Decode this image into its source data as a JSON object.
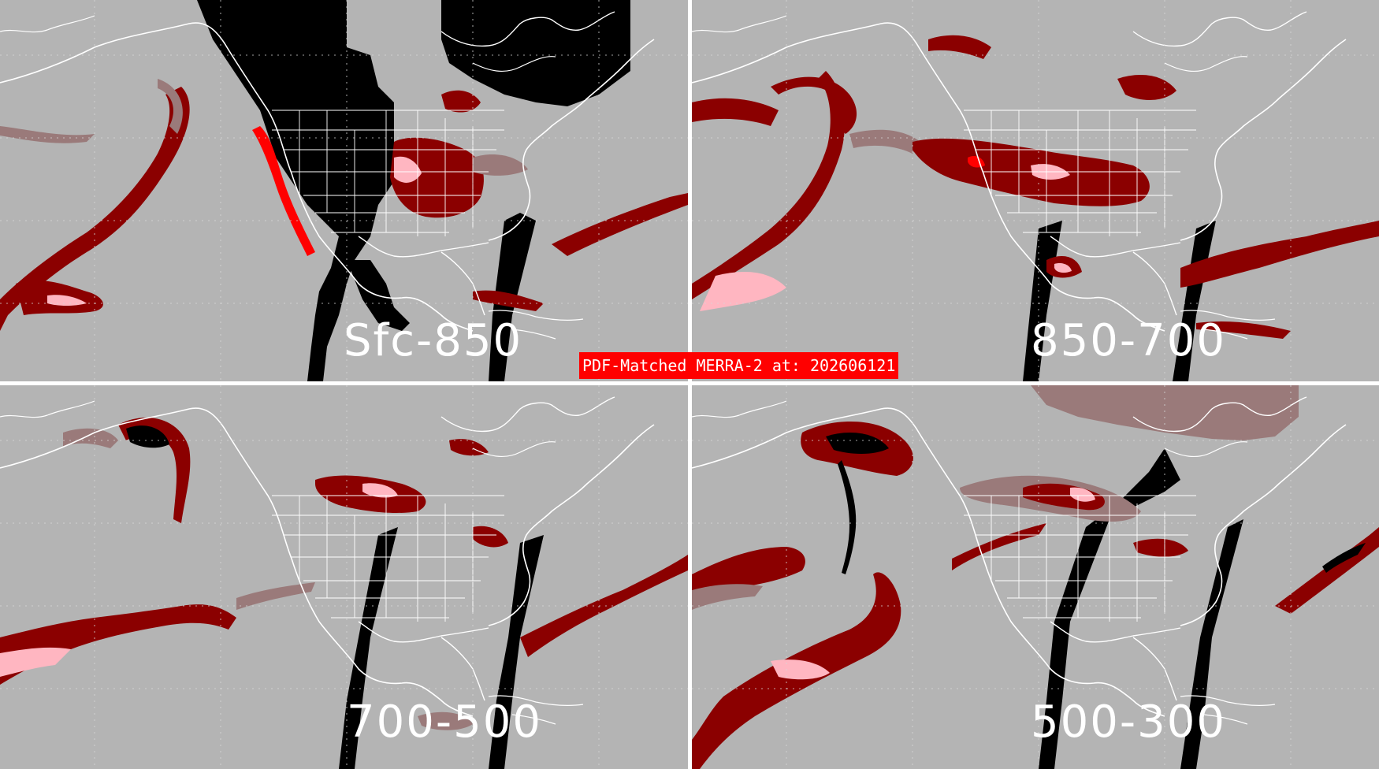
{
  "banner": {
    "text": "PDF-Matched MERRA-2 at: 202606121"
  },
  "panels": [
    {
      "id": "tl",
      "label": "Sfc-850"
    },
    {
      "id": "tr",
      "label": "850-700"
    },
    {
      "id": "bl",
      "label": "700-500"
    },
    {
      "id": "br",
      "label": "500-300"
    }
  ],
  "colors": {
    "ocean_background": "#b4b4b4",
    "no_data": "#000000",
    "category_low": "#9a7a7a",
    "category_mid": "#8b0000",
    "category_high": "#ff0000",
    "category_max": "#ffb6c1",
    "boundaries": "#ffffff"
  }
}
